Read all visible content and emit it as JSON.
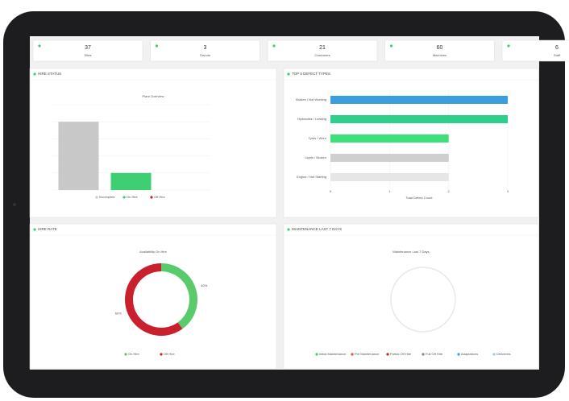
{
  "stats": [
    {
      "value": 37,
      "label": "Sites"
    },
    {
      "value": 3,
      "label": "Depots"
    },
    {
      "value": 21,
      "label": "Customers"
    },
    {
      "value": 60,
      "label": "Machines"
    },
    {
      "value": 6,
      "label": "Staff"
    }
  ],
  "chart_data": [
    {
      "type": "bar",
      "title": "HIRE STATUS",
      "subtitle": "Plant Overview",
      "categories": [
        "Incomplete",
        "On Hire",
        "Off Hire"
      ],
      "values": [
        4,
        1,
        0
      ],
      "colors": [
        "#c8c8c8",
        "#3ecf72",
        "#c8202c"
      ],
      "ylim": [
        0,
        5
      ]
    },
    {
      "type": "hbar",
      "title": "TOP 5 DEFECT TYPES",
      "x_label": "Total Defect Count",
      "categories": [
        "Brakes / Not Working",
        "Hydraulics / Leaking",
        "Tyres / Worn",
        "Lights / Broken",
        "Engine / Not Starting"
      ],
      "values": [
        3,
        3,
        2,
        2,
        2
      ],
      "colors": [
        "#3a9ee0",
        "#2ecf8a",
        "#3ee07a",
        "#cfcfcf",
        "#e6e6e6"
      ],
      "xlim": [
        0,
        3
      ],
      "xticks": [
        0,
        1,
        2,
        3
      ]
    },
    {
      "type": "donut",
      "title": "HIRE RATE",
      "subtitle": "Availability On Hire",
      "categories": [
        "On Hire",
        "Off Hire"
      ],
      "values": [
        40,
        60
      ],
      "value_labels": [
        "40%",
        "60%"
      ],
      "colors": [
        "#5acb6a",
        "#c8202c"
      ]
    },
    {
      "type": "donut",
      "title": "MAINTENANCE LAST 7 DAYS",
      "subtitle": "Maintenance Last 7 Days",
      "categories": [
        "Initial Maintenance",
        "Pre Maintenance",
        "Partial Off Hire",
        "Full Off Hire",
        "Adaptations",
        "Deliveries"
      ],
      "values": [
        0,
        0,
        0,
        0,
        0,
        0
      ],
      "colors": [
        "#3ecf72",
        "#e05050",
        "#c8202c",
        "#888888",
        "#3a9ee0",
        "#9ec8e8"
      ]
    }
  ]
}
